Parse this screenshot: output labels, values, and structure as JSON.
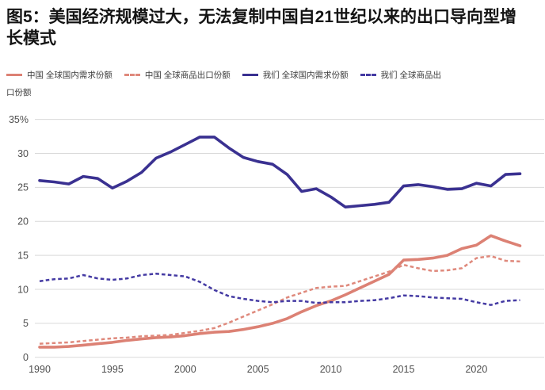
{
  "figure_title": "图5：美国经济规模过大，无法复制中国自21世纪以来的出口导向型增长模式",
  "colors": {
    "china_line": "#dc8174",
    "china_dashed_line": "#df897c",
    "us_line": "#3a3191",
    "us_dashed_line": "#443aa3",
    "grid": "#d9d9d9",
    "axis_text": "#4f4f4f",
    "title_text": "#141414"
  },
  "legend": {
    "items": [
      {
        "label": "中国 全球国内需求份额",
        "style": "solid",
        "color": "#dc8174"
      },
      {
        "label": "中国 全球商品出口份额",
        "style": "dashed",
        "color": "#df897c"
      },
      {
        "label": "我们 全球国内需求份额",
        "style": "solid",
        "color": "#3a3191"
      },
      {
        "label": "我们 全球商品出口份额",
        "style": "dashed",
        "color": "#443aa3"
      }
    ]
  },
  "chart_data": {
    "type": "line",
    "title": "图5：美国经济规模过大，无法复制中国自21世纪以来的出口导向型增长模式",
    "x": [
      1990,
      1991,
      1992,
      1993,
      1994,
      1995,
      1996,
      1997,
      1998,
      1999,
      2000,
      2001,
      2002,
      2003,
      2004,
      2005,
      2006,
      2007,
      2008,
      2009,
      2010,
      2011,
      2012,
      2013,
      2014,
      2015,
      2016,
      2017,
      2018,
      2019,
      2020,
      2021,
      2022,
      2023
    ],
    "series": [
      {
        "name": "中国 全球国内需求份额",
        "style": "solid",
        "color": "#dc8174",
        "values": [
          1.5,
          1.5,
          1.6,
          1.8,
          2.0,
          2.2,
          2.5,
          2.7,
          2.9,
          3.0,
          3.2,
          3.5,
          3.7,
          3.8,
          4.1,
          4.5,
          5.0,
          5.7,
          6.7,
          7.6,
          8.3,
          9.2,
          10.2,
          11.2,
          12.2,
          14.3,
          14.4,
          14.6,
          15.0,
          16.0,
          16.5,
          17.9,
          17.1,
          16.4
        ]
      },
      {
        "name": "中国 全球商品出口份额",
        "style": "dashed",
        "color": "#df897c",
        "values": [
          2.0,
          2.1,
          2.2,
          2.4,
          2.6,
          2.8,
          2.9,
          3.1,
          3.2,
          3.3,
          3.6,
          3.9,
          4.3,
          5.1,
          6.0,
          6.9,
          7.8,
          8.8,
          9.5,
          10.2,
          10.4,
          10.5,
          11.2,
          11.9,
          12.6,
          13.6,
          13.1,
          12.7,
          12.8,
          13.1,
          14.6,
          14.9,
          14.2,
          14.1
        ]
      },
      {
        "name": "我们 全球国内需求份额",
        "style": "solid",
        "color": "#3a3191",
        "values": [
          26.0,
          25.8,
          25.5,
          26.6,
          26.3,
          24.9,
          25.9,
          27.2,
          29.3,
          30.2,
          31.3,
          32.4,
          32.4,
          30.8,
          29.4,
          28.8,
          28.4,
          26.9,
          24.4,
          24.8,
          23.6,
          22.1,
          22.3,
          22.5,
          22.8,
          25.2,
          25.4,
          25.1,
          24.7,
          24.8,
          25.6,
          25.2,
          26.9,
          27.0
        ]
      },
      {
        "name": "我们 全球商品出口份额",
        "style": "dashed",
        "color": "#443aa3",
        "values": [
          11.2,
          11.5,
          11.6,
          12.1,
          11.6,
          11.4,
          11.6,
          12.1,
          12.3,
          12.1,
          11.9,
          11.1,
          9.9,
          9.0,
          8.6,
          8.3,
          8.1,
          8.3,
          8.3,
          8.0,
          8.1,
          8.1,
          8.3,
          8.4,
          8.7,
          9.1,
          9.0,
          8.8,
          8.7,
          8.6,
          8.1,
          7.7,
          8.3,
          8.4
        ]
      }
    ],
    "y_ticks": [
      35,
      30,
      25,
      20,
      15,
      10,
      5,
      0
    ],
    "y_tick_labels": [
      "35%",
      "30",
      "25",
      "20",
      "15",
      "10",
      "5",
      "0"
    ],
    "x_ticks": [
      1990,
      1995,
      2000,
      2005,
      2010,
      2015,
      2020
    ],
    "x_tick_labels": [
      "1990",
      "1995",
      "2000",
      "2005",
      "2010",
      "2015",
      "2020"
    ],
    "ylim": [
      0,
      35
    ],
    "xlim": [
      1990,
      2023
    ],
    "grid": "horizontal",
    "legend_position": "top"
  }
}
